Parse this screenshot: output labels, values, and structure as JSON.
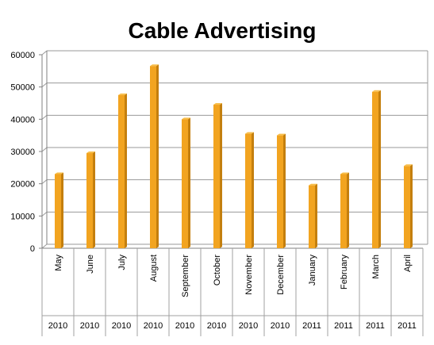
{
  "chart_data": {
    "type": "bar",
    "title": "Cable Advertising",
    "categories": [
      "May",
      "June",
      "July",
      "August",
      "September",
      "October",
      "November",
      "December",
      "January",
      "February",
      "March",
      "April"
    ],
    "years": [
      "2010",
      "2010",
      "2010",
      "2010",
      "2010",
      "2010",
      "2010",
      "2010",
      "2011",
      "2011",
      "2011",
      "2011"
    ],
    "values": [
      23000,
      29500,
      47500,
      56500,
      40000,
      44500,
      35500,
      35000,
      19500,
      23000,
      48500,
      25500
    ],
    "ylim": [
      0,
      60000
    ],
    "y_ticks": [
      "0",
      "10000",
      "20000",
      "30000",
      "40000",
      "50000",
      "60000"
    ],
    "grid": true,
    "legend": "none",
    "colors": {
      "bar_front": "#F2A420",
      "bar_side": "#C47F0E",
      "bar_top": "#F7BE4A",
      "grid": "#9A9A9A",
      "axis": "#808080",
      "category_separator": "#A0A0A0"
    }
  }
}
